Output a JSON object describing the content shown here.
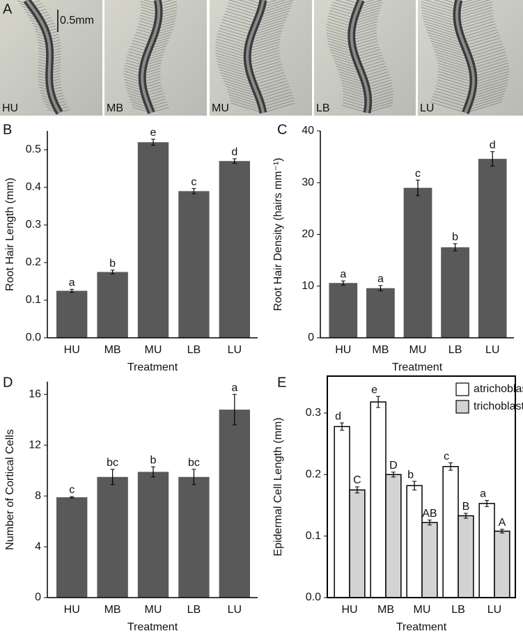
{
  "panel_a": {
    "panel_label": "A",
    "scale_bar": "0.5mm",
    "images": [
      "HU",
      "MB",
      "MU",
      "LB",
      "LU"
    ]
  },
  "chart_data": [
    {
      "type": "bar",
      "panel_label": "B",
      "ylabel": "Root Hair Length (mm)",
      "xlabel": "Treatment",
      "categories": [
        "HU",
        "MB",
        "MU",
        "LB",
        "LU"
      ],
      "values": [
        0.125,
        0.175,
        0.52,
        0.39,
        0.47
      ],
      "errors": [
        0.004,
        0.005,
        0.008,
        0.007,
        0.006
      ],
      "letters": [
        "a",
        "b",
        "e",
        "c",
        "d"
      ],
      "color": "#595959",
      "ylim": [
        0,
        0.55
      ],
      "yticks": [
        {
          "value": 0,
          "label": "0.0"
        },
        0.1,
        0.2,
        0.3,
        0.4,
        0.5
      ]
    },
    {
      "type": "bar",
      "panel_label": "C",
      "ylabel": "Root Hair Density (hairs mm⁻¹)",
      "xlabel": "Treatment",
      "categories": [
        "HU",
        "MB",
        "MU",
        "LB",
        "LU"
      ],
      "values": [
        10.6,
        9.6,
        29,
        17.5,
        34.6
      ],
      "errors": [
        0.4,
        0.5,
        1.5,
        0.7,
        1.4
      ],
      "letters": [
        "a",
        "a",
        "c",
        "b",
        "d"
      ],
      "color": "#595959",
      "ylim": [
        0,
        40
      ],
      "yticks": [
        0,
        10,
        20,
        30,
        40
      ]
    },
    {
      "type": "bar",
      "panel_label": "D",
      "ylabel": "Number of Cortical Cells",
      "xlabel": "Treatment",
      "categories": [
        "HU",
        "MB",
        "MU",
        "LB",
        "LU"
      ],
      "values": [
        7.9,
        9.5,
        9.9,
        9.5,
        14.8
      ],
      "errors": [
        0.05,
        0.6,
        0.4,
        0.6,
        1.2
      ],
      "letters": [
        "c",
        "bc",
        "b",
        "bc",
        "a"
      ],
      "color": "#595959",
      "ylim": [
        0,
        17
      ],
      "yticks": [
        0,
        4,
        8,
        12,
        16
      ]
    },
    {
      "type": "grouped_bar",
      "panel_label": "E",
      "ylabel": "Epidermal Cell Length (mm)",
      "xlabel": "Treatment",
      "categories": [
        "HU",
        "MB",
        "MU",
        "LB",
        "LU"
      ],
      "box": true,
      "legend": "upper right",
      "series": [
        {
          "name": "atrichoblast",
          "color": "#ffffff",
          "values": [
            0.278,
            0.318,
            0.182,
            0.213,
            0.153
          ],
          "errors": [
            0.006,
            0.009,
            0.007,
            0.006,
            0.005
          ],
          "letters": [
            "d",
            "e",
            "b",
            "c",
            "a"
          ]
        },
        {
          "name": "trichoblast",
          "color": "#d3d3d3",
          "values": [
            0.175,
            0.2,
            0.122,
            0.133,
            0.108
          ],
          "errors": [
            0.005,
            0.004,
            0.004,
            0.004,
            0.003
          ],
          "letters": [
            "C",
            "D",
            "AB",
            "B",
            "A"
          ]
        }
      ],
      "ylim": [
        0,
        0.36
      ],
      "yticks": [
        {
          "value": 0,
          "label": "0.0"
        },
        0.1,
        0.2,
        0.3
      ]
    }
  ]
}
